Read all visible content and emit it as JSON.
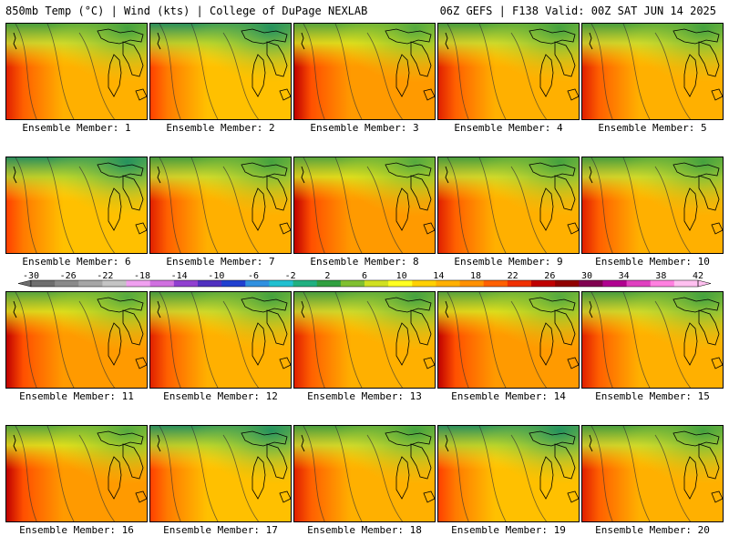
{
  "header": {
    "left": "850mb Temp (°C) | Wind (kts) | College of DuPage NEXLAB",
    "right": "06Z GEFS | F138 Valid: 00Z SAT JUN 14 2025"
  },
  "members": [
    {
      "label": "Ensemble Member: 1",
      "style": "warm"
    },
    {
      "label": "Ensemble Member: 2",
      "style": "cool"
    },
    {
      "label": "Ensemble Member: 3",
      "style": "hot"
    },
    {
      "label": "Ensemble Member: 4",
      "style": "warm"
    },
    {
      "label": "Ensemble Member: 5",
      "style": "warm"
    },
    {
      "label": "Ensemble Member: 6",
      "style": "cool"
    },
    {
      "label": "Ensemble Member: 7",
      "style": "warm"
    },
    {
      "label": "Ensemble Member: 8",
      "style": "hot"
    },
    {
      "label": "Ensemble Member: 9",
      "style": "warm"
    },
    {
      "label": "Ensemble Member: 10",
      "style": "warm"
    },
    {
      "label": "Ensemble Member: 11",
      "style": "hot"
    },
    {
      "label": "Ensemble Member: 12",
      "style": "warm"
    },
    {
      "label": "Ensemble Member: 13",
      "style": "warm"
    },
    {
      "label": "Ensemble Member: 14",
      "style": "hot"
    },
    {
      "label": "Ensemble Member: 15",
      "style": "warm"
    },
    {
      "label": "Ensemble Member: 16",
      "style": "hot"
    },
    {
      "label": "Ensemble Member: 17",
      "style": "cool"
    },
    {
      "label": "Ensemble Member: 18",
      "style": "warm"
    },
    {
      "label": "Ensemble Member: 19",
      "style": "cool"
    },
    {
      "label": "Ensemble Member: 20",
      "style": "warm"
    }
  ],
  "colorbar": {
    "ticks": [
      "-30",
      "-26",
      "-22",
      "-18",
      "-14",
      "-10",
      "-6",
      "-2",
      "2",
      "6",
      "10",
      "14",
      "18",
      "22",
      "26",
      "30",
      "34",
      "38",
      "42"
    ],
    "colors": [
      "#6e6e6e",
      "#8a8a8a",
      "#a6a6a6",
      "#c4c4c4",
      "#f0a0f0",
      "#d070e0",
      "#9040d0",
      "#5030c0",
      "#2040d0",
      "#3090e0",
      "#20c0d0",
      "#20b080",
      "#30a040",
      "#80c030",
      "#d0e020",
      "#ffff20",
      "#ffd000",
      "#ffb000",
      "#ff9000",
      "#ff6000",
      "#f03000",
      "#c00000",
      "#900000",
      "#800050",
      "#b00090",
      "#e040c0",
      "#ff80e0",
      "#ffc0f0"
    ]
  }
}
